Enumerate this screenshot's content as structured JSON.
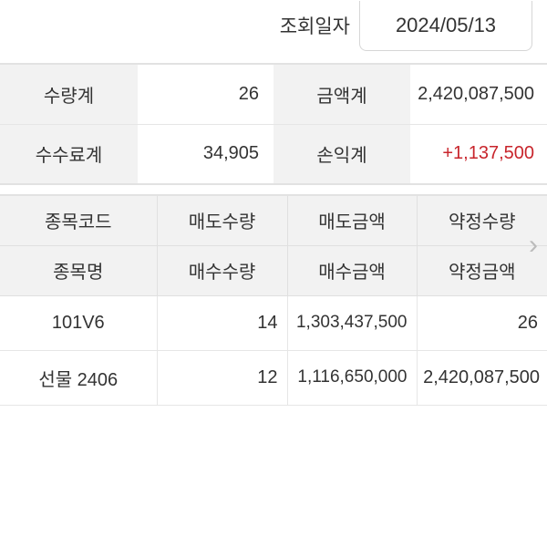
{
  "query": {
    "label": "조회일자",
    "date": "2024/05/13"
  },
  "summary": {
    "qty_label": "수량계",
    "qty": "26",
    "amount_label": "금액계",
    "amount": "2,420,087,500",
    "fee_label": "수수료계",
    "fee": "34,905",
    "pnl_label": "손익계",
    "pnl": "+1,137,500",
    "pnl_color": "#c8252c"
  },
  "table": {
    "headers_top": [
      "종목코드",
      "매도수량",
      "매도금액",
      "약정수량"
    ],
    "headers_bottom": [
      "종목명",
      "매수수량",
      "매수금액",
      "약정금액"
    ],
    "rows": [
      [
        "101V6",
        "14",
        "1,303,437,500",
        "26"
      ],
      [
        "선물 2406",
        "12",
        "1,116,650,000",
        "2,420,087,500"
      ]
    ]
  },
  "icons": {
    "scroll_right": "chevron-right-icon"
  }
}
